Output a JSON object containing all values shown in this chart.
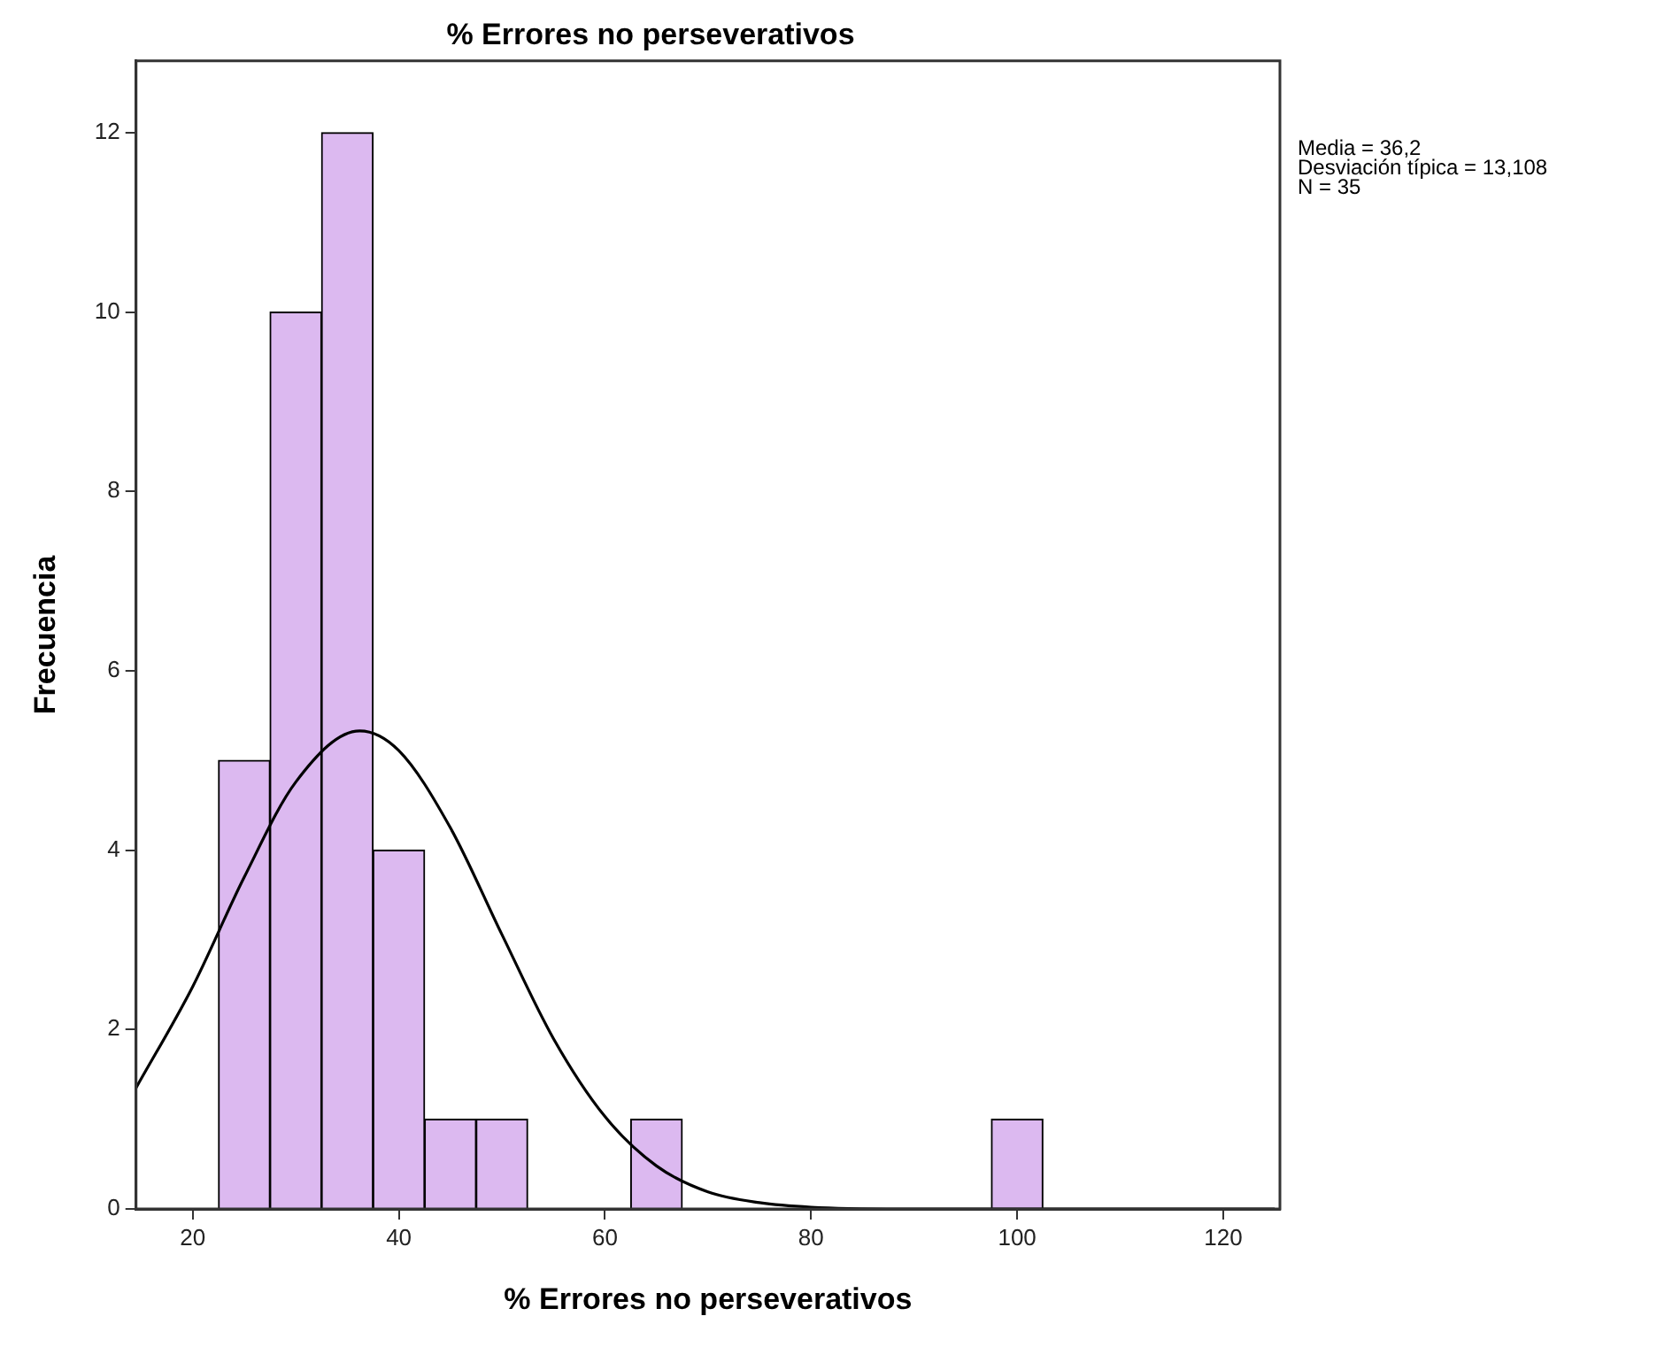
{
  "chart_data": {
    "type": "histogram",
    "title": "% Errores no perseverativos",
    "xlabel": "% Errores no perseverativos",
    "ylabel": "Frecuencia",
    "bins": [
      22.5,
      27.5,
      32.5,
      37.5,
      42.5,
      47.5,
      52.5,
      57.5,
      62.5,
      67.5,
      72.5,
      77.5,
      82.5,
      87.5,
      92.5,
      97.5,
      102.5
    ],
    "values": [
      5,
      10,
      12,
      4,
      1,
      1,
      0,
      0,
      1,
      0,
      0,
      0,
      0,
      0,
      0,
      1
    ],
    "color": "#dcb9f0",
    "series": [
      {
        "type": "line",
        "color": "#000000",
        "x": [
          14.5,
          20,
          25,
          30,
          36.2,
          40,
          45,
          50,
          55,
          60,
          65,
          70,
          75,
          80,
          90,
          100,
          125
        ],
        "values": [
          1.35,
          2.48,
          3.7,
          4.76,
          5.33,
          5.11,
          4.25,
          3.06,
          1.9,
          1.03,
          0.48,
          0.19,
          0.07,
          0.02,
          0,
          0,
          0
        ]
      }
    ],
    "xlim": [
      14.5,
      125.5
    ],
    "xticks": [
      20,
      40,
      60,
      80,
      100,
      120
    ],
    "ylim": [
      0,
      12.8
    ],
    "yticks": [
      0,
      2,
      4,
      6,
      8,
      10,
      12
    ],
    "grid": false,
    "legend": false,
    "annotations": [
      "Media = 36,2",
      "Desviación típica = 13,108",
      "N = 35"
    ]
  }
}
